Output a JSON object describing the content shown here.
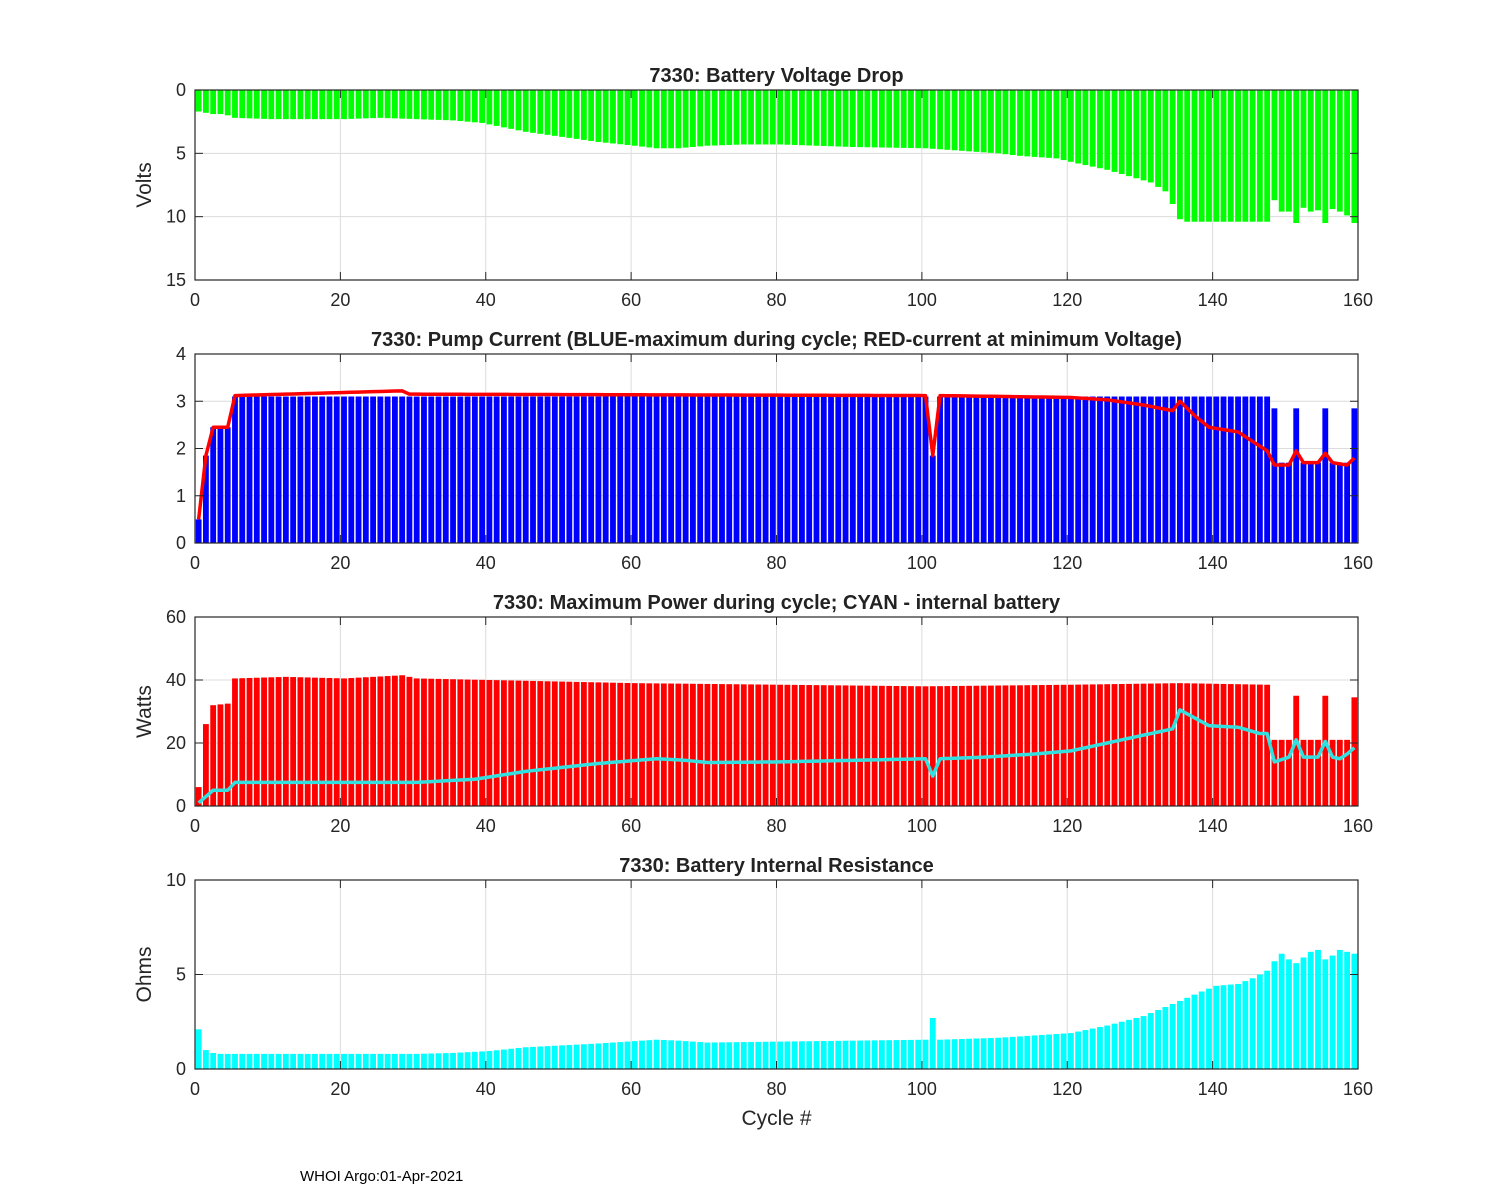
{
  "footer": "WHOI Argo:01-Apr-2021",
  "colors": {
    "green": "#00ff00",
    "blue": "#0000ff",
    "red": "#ff0000",
    "cyan": "#00ffff",
    "redLine": "#ff0000",
    "cyanLine": "#33e0e0"
  },
  "chart_data": [
    {
      "type": "bar",
      "title": "7330: Battery Voltage Drop",
      "xlabel": "",
      "ylabel": "Volts",
      "xlim": [
        0,
        160
      ],
      "ylim": [
        0,
        15
      ],
      "y_reversed": true,
      "xticks": [
        0,
        20,
        40,
        60,
        80,
        100,
        120,
        140,
        160
      ],
      "yticks": [
        0,
        5,
        10,
        15
      ],
      "grid": true,
      "series": [
        {
          "name": "Voltage drop",
          "kind": "bar",
          "color": "green",
          "keyframes": [
            [
              0,
              1.7
            ],
            [
              1,
              1.8
            ],
            [
              2,
              1.9
            ],
            [
              3,
              1.9
            ],
            [
              4,
              2.0
            ],
            [
              5,
              2.2
            ],
            [
              10,
              2.3
            ],
            [
              20,
              2.3
            ],
            [
              25,
              2.2
            ],
            [
              30,
              2.3
            ],
            [
              35,
              2.4
            ],
            [
              39,
              2.6
            ],
            [
              45,
              3.3
            ],
            [
              50,
              3.7
            ],
            [
              55,
              4.1
            ],
            [
              60,
              4.4
            ],
            [
              63,
              4.6
            ],
            [
              66,
              4.6
            ],
            [
              70,
              4.4
            ],
            [
              75,
              4.3
            ],
            [
              80,
              4.3
            ],
            [
              90,
              4.5
            ],
            [
              100,
              4.6
            ],
            [
              105,
              4.8
            ],
            [
              110,
              5.0
            ],
            [
              113,
              5.2
            ],
            [
              118,
              5.4
            ],
            [
              121,
              5.8
            ],
            [
              125,
              6.3
            ],
            [
              128,
              6.8
            ],
            [
              131,
              7.3
            ],
            [
              133,
              8.0
            ],
            [
              134,
              9.0
            ],
            [
              135,
              10.2
            ],
            [
              136,
              10.4
            ],
            [
              147,
              10.4
            ],
            [
              148,
              8.7
            ],
            [
              149,
              9.6
            ],
            [
              150,
              9.6
            ],
            [
              151,
              10.5
            ],
            [
              152,
              9.3
            ],
            [
              153,
              9.6
            ],
            [
              154,
              9.5
            ],
            [
              155,
              10.5
            ],
            [
              156,
              9.4
            ],
            [
              157,
              9.6
            ],
            [
              158,
              9.9
            ],
            [
              159,
              10.5
            ]
          ]
        }
      ]
    },
    {
      "type": "bar",
      "title": "7330: Pump Current (BLUE-maximum during cycle; RED-current at minimum Voltage)",
      "xlabel": "",
      "ylabel": "",
      "xlim": [
        0,
        160
      ],
      "ylim": [
        0,
        4
      ],
      "xticks": [
        0,
        20,
        40,
        60,
        80,
        100,
        120,
        140,
        160
      ],
      "yticks": [
        0,
        1,
        2,
        3,
        4
      ],
      "grid": true,
      "series": [
        {
          "name": "BLUE-maximum during cycle",
          "kind": "bar",
          "color": "blue",
          "keyframes": [
            [
              0,
              0.5
            ],
            [
              1,
              1.85
            ],
            [
              2,
              2.45
            ],
            [
              4,
              2.45
            ],
            [
              5,
              3.1
            ],
            [
              100,
              3.1
            ],
            [
              101,
              1.85
            ],
            [
              102,
              3.1
            ],
            [
              120,
              3.1
            ],
            [
              147,
              3.1
            ],
            [
              148,
              2.85
            ],
            [
              149,
              1.7
            ],
            [
              150,
              1.7
            ],
            [
              151,
              2.85
            ],
            [
              152,
              1.7
            ],
            [
              154,
              1.7
            ],
            [
              155,
              2.85
            ],
            [
              156,
              1.7
            ],
            [
              158,
              1.7
            ],
            [
              159,
              2.85
            ]
          ]
        },
        {
          "name": "RED-current at minimum Voltage",
          "kind": "line",
          "color": "redLine",
          "keyframes": [
            [
              0,
              0.5
            ],
            [
              1,
              1.85
            ],
            [
              2,
              2.45
            ],
            [
              4,
              2.45
            ],
            [
              5,
              3.12
            ],
            [
              28,
              3.22
            ],
            [
              29,
              3.15
            ],
            [
              100,
              3.12
            ],
            [
              101,
              1.85
            ],
            [
              102,
              3.12
            ],
            [
              120,
              3.08
            ],
            [
              125,
              3.03
            ],
            [
              130,
              2.92
            ],
            [
              134,
              2.8
            ],
            [
              135,
              3.0
            ],
            [
              137,
              2.7
            ],
            [
              139,
              2.45
            ],
            [
              143,
              2.35
            ],
            [
              146,
              2.05
            ],
            [
              147,
              1.95
            ],
            [
              148,
              1.65
            ],
            [
              150,
              1.65
            ],
            [
              151,
              1.95
            ],
            [
              152,
              1.7
            ],
            [
              154,
              1.7
            ],
            [
              155,
              1.9
            ],
            [
              156,
              1.7
            ],
            [
              158,
              1.65
            ],
            [
              159,
              1.8
            ]
          ]
        }
      ]
    },
    {
      "type": "bar",
      "title": "7330: Maximum Power during cycle; CYAN - internal battery",
      "xlabel": "",
      "ylabel": "Watts",
      "xlim": [
        0,
        160
      ],
      "ylim": [
        0,
        60
      ],
      "xticks": [
        0,
        20,
        40,
        60,
        80,
        100,
        120,
        140,
        160
      ],
      "yticks": [
        0,
        20,
        40,
        60
      ],
      "grid": true,
      "series": [
        {
          "name": "Maximum Power during cycle",
          "kind": "bar",
          "color": "red",
          "keyframes": [
            [
              0,
              6
            ],
            [
              1,
              26
            ],
            [
              2,
              32
            ],
            [
              4,
              32.5
            ],
            [
              5,
              40.5
            ],
            [
              12,
              41
            ],
            [
              20,
              40.5
            ],
            [
              28,
              41.5
            ],
            [
              30,
              40.5
            ],
            [
              40,
              40
            ],
            [
              60,
              39
            ],
            [
              80,
              38.5
            ],
            [
              100,
              38
            ],
            [
              120,
              38.5
            ],
            [
              135,
              39
            ],
            [
              147,
              38.5
            ],
            [
              148,
              21
            ],
            [
              150,
              21
            ],
            [
              151,
              35
            ],
            [
              152,
              21
            ],
            [
              154,
              21
            ],
            [
              155,
              35
            ],
            [
              156,
              21
            ],
            [
              158,
              21
            ],
            [
              159,
              34.5
            ]
          ]
        },
        {
          "name": "CYAN - internal battery",
          "kind": "line",
          "color": "cyanLine",
          "keyframes": [
            [
              0,
              1
            ],
            [
              1,
              3
            ],
            [
              2,
              5
            ],
            [
              4,
              5
            ],
            [
              5,
              7.5
            ],
            [
              30,
              7.5
            ],
            [
              38,
              8.5
            ],
            [
              45,
              11
            ],
            [
              55,
              13.5
            ],
            [
              63,
              15
            ],
            [
              67,
              14.5
            ],
            [
              70,
              13.8
            ],
            [
              80,
              14
            ],
            [
              90,
              14.5
            ],
            [
              100,
              15
            ],
            [
              101,
              9.5
            ],
            [
              102,
              15
            ],
            [
              108,
              15.5
            ],
            [
              115,
              16.5
            ],
            [
              120,
              17.5
            ],
            [
              125,
              20
            ],
            [
              130,
              22.5
            ],
            [
              134,
              24.5
            ],
            [
              135,
              30.5
            ],
            [
              137,
              28
            ],
            [
              139,
              25.5
            ],
            [
              143,
              25
            ],
            [
              146,
              23
            ],
            [
              147,
              23
            ],
            [
              148,
              14
            ],
            [
              150,
              15.5
            ],
            [
              151,
              21
            ],
            [
              152,
              15.5
            ],
            [
              154,
              15.5
            ],
            [
              155,
              20.5
            ],
            [
              156,
              15.5
            ],
            [
              157,
              15
            ],
            [
              158,
              16.5
            ],
            [
              159,
              18.5
            ]
          ]
        }
      ]
    },
    {
      "type": "bar",
      "title": "7330: Battery Internal Resistance",
      "xlabel": "Cycle #",
      "ylabel": "Ohms",
      "xlim": [
        0,
        160
      ],
      "ylim": [
        0,
        10
      ],
      "xticks": [
        0,
        20,
        40,
        60,
        80,
        100,
        120,
        140,
        160
      ],
      "yticks": [
        0,
        5,
        10
      ],
      "grid": true,
      "series": [
        {
          "name": "Internal resistance",
          "kind": "bar",
          "color": "cyan",
          "keyframes": [
            [
              0,
              2.1
            ],
            [
              1,
              1.0
            ],
            [
              2,
              0.85
            ],
            [
              3,
              0.8
            ],
            [
              30,
              0.8
            ],
            [
              35,
              0.85
            ],
            [
              40,
              0.95
            ],
            [
              45,
              1.15
            ],
            [
              55,
              1.35
            ],
            [
              63,
              1.55
            ],
            [
              66,
              1.5
            ],
            [
              70,
              1.4
            ],
            [
              80,
              1.45
            ],
            [
              90,
              1.5
            ],
            [
              100,
              1.55
            ],
            [
              101,
              2.7
            ],
            [
              102,
              1.55
            ],
            [
              110,
              1.65
            ],
            [
              120,
              1.9
            ],
            [
              125,
              2.3
            ],
            [
              130,
              2.8
            ],
            [
              135,
              3.6
            ],
            [
              138,
              4.1
            ],
            [
              140,
              4.4
            ],
            [
              143,
              4.5
            ],
            [
              145,
              4.8
            ],
            [
              147,
              5.2
            ],
            [
              148,
              5.7
            ],
            [
              149,
              6.1
            ],
            [
              150,
              5.8
            ],
            [
              151,
              5.6
            ],
            [
              152,
              5.9
            ],
            [
              153,
              6.2
            ],
            [
              154,
              6.3
            ],
            [
              155,
              5.8
            ],
            [
              156,
              6.0
            ],
            [
              157,
              6.3
            ],
            [
              158,
              6.2
            ],
            [
              159,
              6.1
            ]
          ]
        }
      ]
    }
  ]
}
